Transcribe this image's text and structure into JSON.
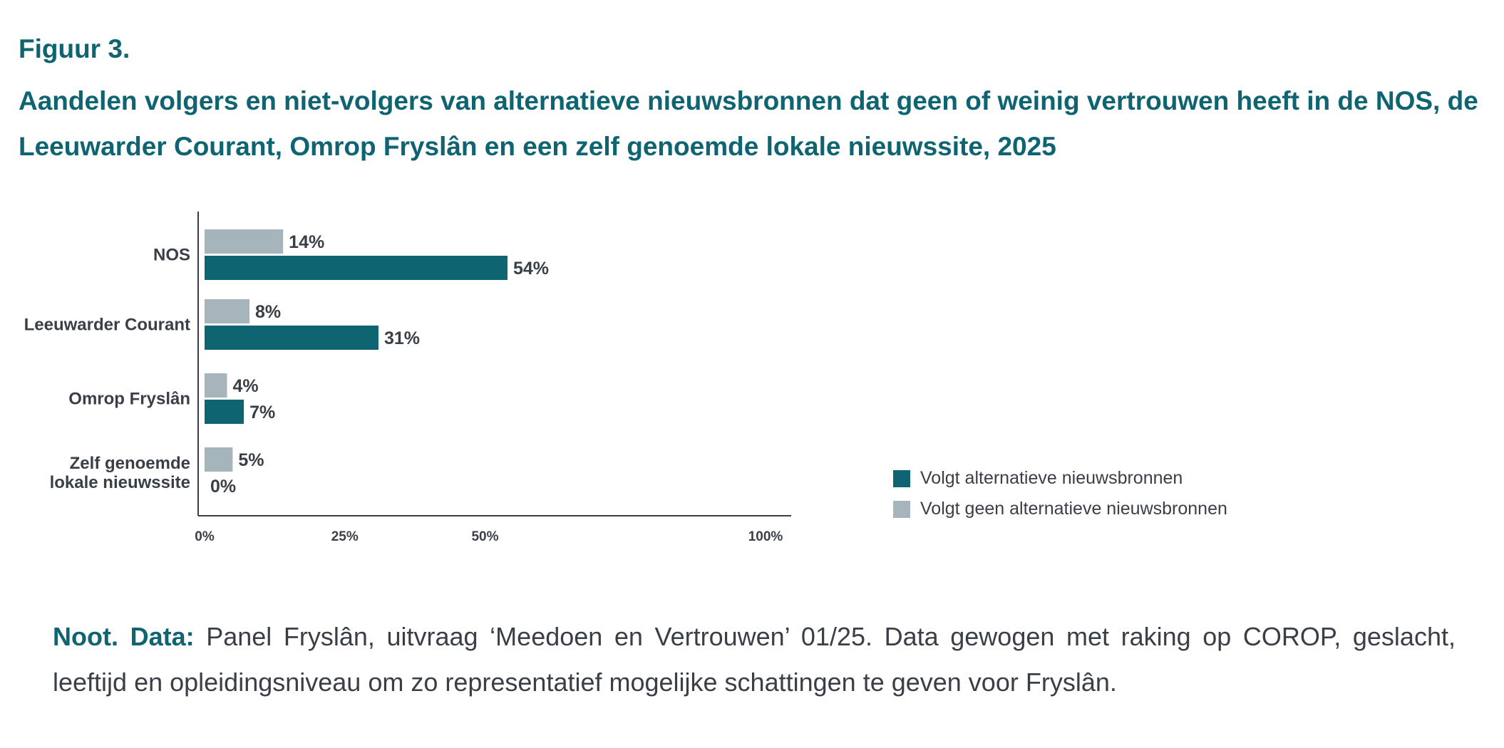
{
  "figure": {
    "label": "Figuur 3.",
    "title": "Aandelen volgers en niet-volgers van alternatieve nieuwsbronnen dat geen of weinig vertrouwen heeft in de NOS, de Leeuwarder Courant, Omrop Fryslân en een zelf genoemde lokale nieuwssite, 2025"
  },
  "colors": {
    "accent": "#0e6470",
    "followers": "#0e6470",
    "non_followers": "#a6b4bc",
    "text": "#3a3f47"
  },
  "chart_data": {
    "type": "bar",
    "orientation": "horizontal",
    "categories": [
      [
        "NOS"
      ],
      [
        "Leeuwarder Courant"
      ],
      [
        "Omrop Fryslân"
      ],
      [
        "Zelf genoemde",
        "lokale nieuwssite"
      ]
    ],
    "series": [
      {
        "name": "Volgt geen alternatieve nieuwsbronnen",
        "color": "#a6b4bc",
        "values": [
          14,
          8,
          4,
          5
        ],
        "labels": [
          "14%",
          "8%",
          "4%",
          "5%"
        ]
      },
      {
        "name": "Volgt alternatieve nieuwsbronnen",
        "color": "#0e6470",
        "values": [
          54,
          31,
          7,
          0
        ],
        "labels": [
          "54%",
          "31%",
          "7%",
          "0%"
        ]
      }
    ],
    "xlim": [
      0,
      100
    ],
    "x_ticks": [
      {
        "value": 0,
        "label": "0%"
      },
      {
        "value": 25,
        "label": "25%"
      },
      {
        "value": 50,
        "label": "50%"
      },
      {
        "value": 100,
        "label": "100%"
      }
    ],
    "grid": false,
    "legend_position": "right"
  },
  "legend": {
    "items": [
      {
        "label": "Volgt alternatieve nieuwsbronnen",
        "color": "#0e6470"
      },
      {
        "label": "Volgt geen alternatieve nieuwsbronnen",
        "color": "#a6b4bc"
      }
    ]
  },
  "note": {
    "lead": "Noot. Data:",
    "text": "Panel Fryslân, uitvraag ‘Meedoen en Vertrouwen’ 01/25. Data gewogen met raking op COROP, geslacht, leeftijd en opleidingsniveau om zo representatief mogelijke schattingen te geven voor Fryslân."
  }
}
